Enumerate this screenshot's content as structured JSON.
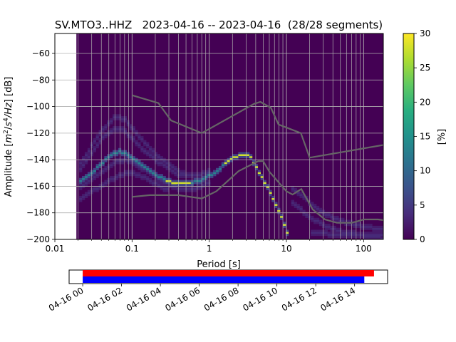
{
  "chart_data": [
    {
      "type": "heatmap",
      "title": "SV.MTO3..HHZ   2023-04-16 -- 2023-04-16  (28/28 segments)",
      "xlabel": "Period [s]",
      "ylabel": "Amplitude [$m^2/s^4/Hz$] [dB]",
      "ylabel_parts": {
        "prefix": "Amplitude [",
        "m": "m",
        "m_sup": "2",
        "slash": "/",
        "s": "s",
        "s_sup": "4",
        "hz": "/Hz",
        "suffix": "] [dB]"
      },
      "x_scale": "log",
      "xlim": [
        0.01,
        180
      ],
      "ylim": [
        -200,
        -45
      ],
      "x_ticks": [
        {
          "value": 0.01,
          "label": "0.01"
        },
        {
          "value": 0.1,
          "label": "0.1"
        },
        {
          "value": 1,
          "label": "1"
        },
        {
          "value": 10,
          "label": "10"
        },
        {
          "value": 100,
          "label": "100"
        }
      ],
      "y_ticks": [
        -60,
        -80,
        -100,
        -120,
        -140,
        -160,
        -180,
        -200
      ],
      "y_tick_labels": [
        "−60",
        "−80",
        "−100",
        "−120",
        "−140",
        "−160",
        "−180",
        "−200"
      ],
      "grid": true,
      "data_x_range": [
        0.019,
        180
      ],
      "colormap": "viridis",
      "background_value_percent": 0,
      "colorbar": {
        "label": "[%]",
        "range": [
          0,
          30
        ],
        "ticks": [
          0,
          5,
          10,
          15,
          20,
          25,
          30
        ],
        "tick_labels": [
          "0",
          "5",
          "10",
          "15",
          "20",
          "25",
          "30"
        ]
      },
      "mode_curve": {
        "periods": [
          0.02,
          0.03,
          0.04,
          0.05,
          0.06,
          0.07,
          0.08,
          0.1,
          0.13,
          0.17,
          0.2,
          0.25,
          0.3,
          0.4,
          0.5,
          0.6,
          0.8,
          1.0,
          1.3,
          1.6,
          2.0,
          2.5,
          3.0,
          3.5,
          4.0,
          5.0,
          6.0,
          7.0,
          8.0,
          9.0,
          10.0,
          11.0
        ],
        "db": [
          -158,
          -150,
          -143,
          -138,
          -135,
          -134,
          -135,
          -138,
          -143,
          -148,
          -151,
          -154,
          -156,
          -158,
          -158,
          -157,
          -155,
          -152,
          -148,
          -143,
          -139,
          -136,
          -136,
          -139,
          -145,
          -155,
          -163,
          -171,
          -179,
          -186,
          -193,
          -200
        ]
      },
      "spread_bands": [
        {
          "periods": [
            0.02,
            0.04,
            0.06,
            0.08,
            0.1,
            0.15,
            0.2,
            0.3,
            0.4,
            0.6,
            0.8,
            1.0
          ],
          "db": [
            -150,
            -124,
            -116,
            -118,
            -124,
            -134,
            -140,
            -147,
            -151,
            -152,
            -151,
            -149
          ]
        },
        {
          "periods": [
            0.02,
            0.04,
            0.06,
            0.08,
            0.1,
            0.15,
            0.2,
            0.3,
            0.4,
            0.6,
            0.8
          ],
          "db": [
            -146,
            -118,
            -108,
            -109,
            -116,
            -128,
            -136,
            -144,
            -149,
            -152,
            -152
          ]
        },
        {
          "periods": [
            0.02,
            0.04,
            0.06,
            0.08,
            0.1,
            0.15,
            0.2,
            0.3,
            0.4,
            0.6,
            0.8,
            1.0
          ],
          "db": [
            -162,
            -150,
            -142,
            -140,
            -142,
            -148,
            -153,
            -159,
            -162,
            -162,
            -160,
            -157
          ]
        },
        {
          "periods": [
            0.02,
            0.03,
            0.05,
            0.08,
            0.1,
            0.15,
            0.2,
            0.3
          ],
          "db": [
            -170,
            -164,
            -156,
            -150,
            -150,
            -154,
            -158,
            -163
          ]
        },
        {
          "periods": [
            12,
            15,
            20,
            30,
            50,
            80,
            120,
            180
          ],
          "db": [
            -162,
            -166,
            -172,
            -180,
            -186,
            -189,
            -191,
            -192
          ]
        },
        {
          "periods": [
            12,
            15,
            20,
            30,
            50,
            80,
            120,
            180
          ],
          "db": [
            -172,
            -177,
            -183,
            -189,
            -194,
            -196,
            -198,
            -199
          ]
        },
        {
          "periods": [
            20,
            40,
            60,
            100,
            180
          ],
          "db": [
            -195,
            -196,
            -197,
            -197,
            -197
          ]
        }
      ],
      "nhnm": {
        "periods": [
          0.1,
          0.22,
          0.32,
          0.8,
          3.8,
          4.6,
          6.3,
          7.9,
          15.4,
          20,
          354.8
        ],
        "db": [
          -91.5,
          -97.4,
          -110.5,
          -120,
          -98,
          -96.5,
          -101,
          -113.5,
          -120,
          -138.5,
          -126
        ]
      },
      "nlnm": {
        "periods": [
          0.1,
          0.17,
          0.4,
          0.8,
          1.24,
          2.4,
          4.3,
          5.0,
          6.0,
          10.0,
          12.0,
          15.6,
          21.9,
          31.6,
          45,
          70,
          101,
          154,
          328
        ],
        "db": [
          -168,
          -166.7,
          -166.7,
          -169.2,
          -163.7,
          -148.6,
          -141.1,
          -141.1,
          -149,
          -163.8,
          -166.2,
          -162.1,
          -177.5,
          -185,
          -187.5,
          -187.5,
          -185,
          -185,
          -187.5
        ]
      }
    },
    {
      "type": "timeline",
      "x_ticks": [
        {
          "label": "04-16 00"
        },
        {
          "label": "04-16 02"
        },
        {
          "label": "04-16 04"
        },
        {
          "label": "04-16 06"
        },
        {
          "label": "04-16 08"
        },
        {
          "label": "04-16 10"
        },
        {
          "label": "04-16 12"
        },
        {
          "label": "04-16 14"
        }
      ],
      "xlim_hours": [
        -0.7,
        15.7
      ],
      "tick_hours": [
        0,
        2,
        4,
        6,
        8,
        10,
        12,
        14
      ],
      "series": [
        {
          "color": "#ff0000",
          "start_hour": 0,
          "end_hour": 15.0
        },
        {
          "color": "#0000ff",
          "start_hour": 0,
          "end_hour": 14.5
        }
      ]
    }
  ]
}
